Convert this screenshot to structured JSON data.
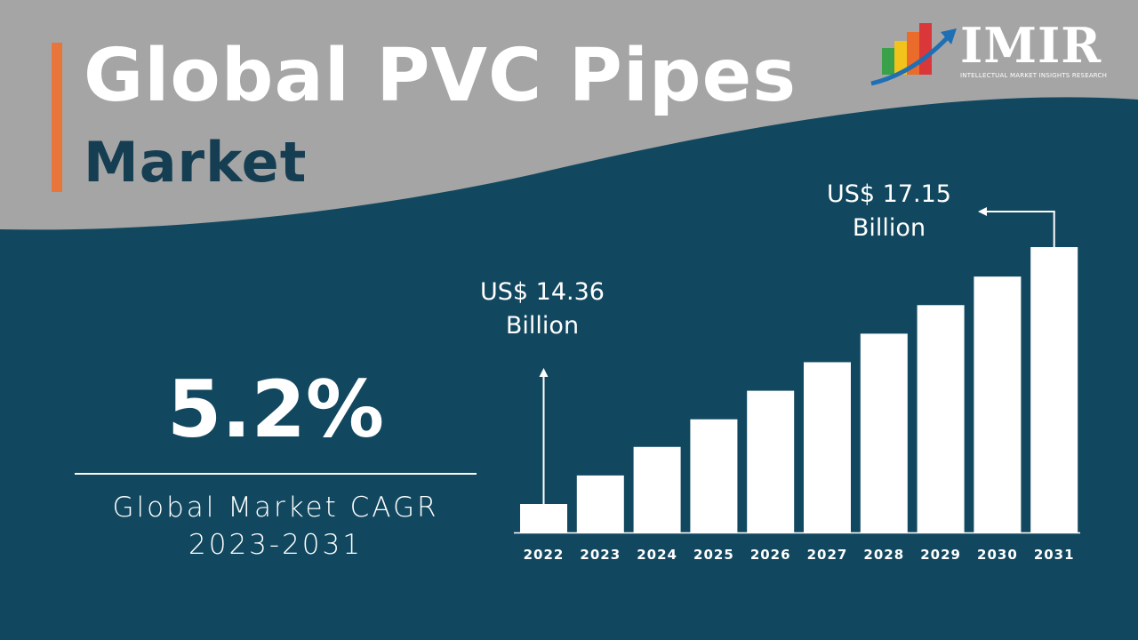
{
  "title": {
    "line1": "Global PVC Pipes",
    "line2": "Market"
  },
  "logo": {
    "name": "IMIR",
    "tagline": "INTELLECTUAL MARKET INSIGHTS RESEARCH"
  },
  "cagr": {
    "value": "5.2%",
    "label": "Global Market CAGR",
    "period": "2023-2031"
  },
  "colors": {
    "background": "#12485f",
    "header": "#a5a5a5",
    "accent": "#e8763a",
    "bars": "#ffffff",
    "title_dark": "#163e52"
  },
  "chart_data": {
    "type": "bar",
    "categories": [
      "2022",
      "2023",
      "2024",
      "2025",
      "2026",
      "2027",
      "2028",
      "2029",
      "2030",
      "2031"
    ],
    "values": [
      14.36,
      14.67,
      14.98,
      15.28,
      15.59,
      15.9,
      16.21,
      16.52,
      16.83,
      17.15
    ],
    "annotations": [
      {
        "category": "2022",
        "text_line1": "US$ 14.36",
        "text_line2": "Billion"
      },
      {
        "category": "2031",
        "text_line1": "US$ 17.15",
        "text_line2": "Billion"
      }
    ],
    "grid": false,
    "legend": false
  }
}
